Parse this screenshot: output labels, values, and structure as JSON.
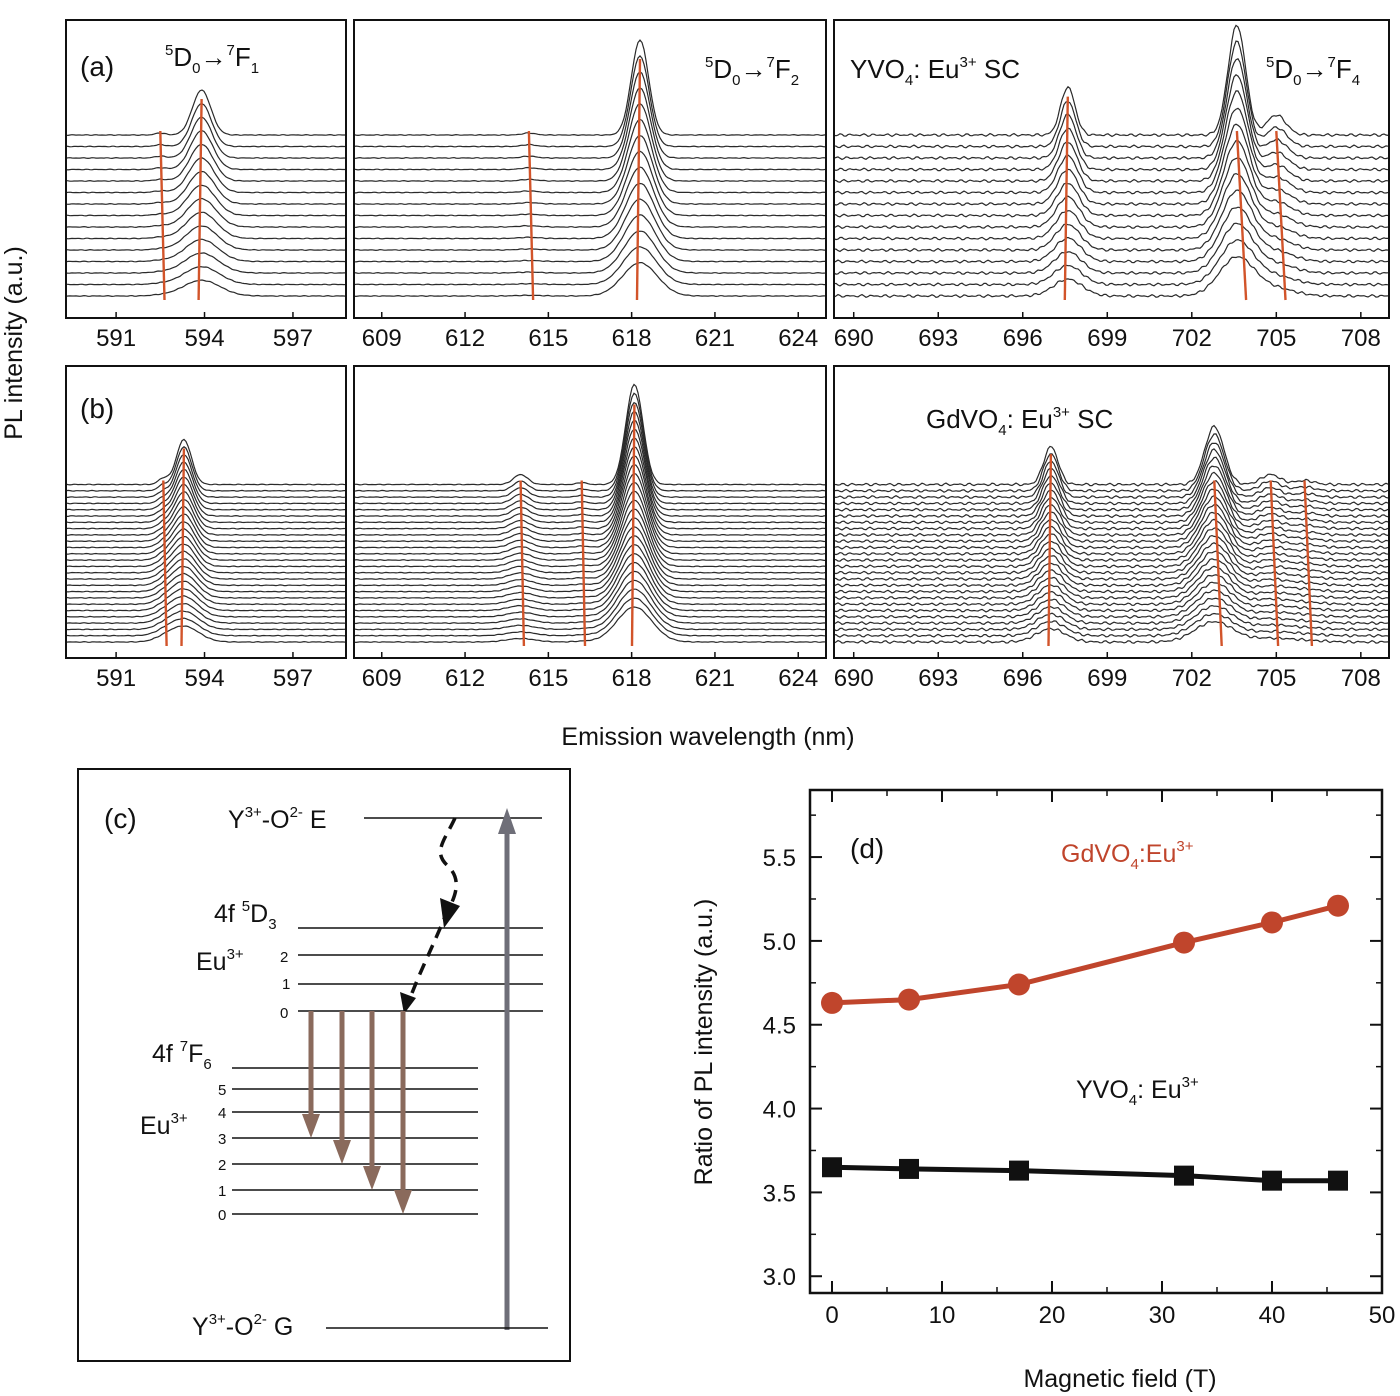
{
  "figure": {
    "shared_ylabel": "PL intensity (a.u.)",
    "shared_xlabel": "Emission wavelength (nm)",
    "panel_labels": {
      "a": "(a)",
      "b": "(b)",
      "c": "(c)",
      "d": "(d)"
    }
  },
  "spectra": {
    "row_a_material": "YVO4: Eu3+ SC",
    "row_b_material": "GdVO4: Eu3+ SC",
    "transitions": [
      "5D0→7F1",
      "5D0→7F2",
      "5D0→7F4"
    ],
    "windows": [
      {
        "ticks": [
          "591",
          "594",
          "597"
        ]
      },
      {
        "ticks": [
          "609",
          "612",
          "615",
          "618",
          "621",
          "624"
        ]
      },
      {
        "ticks": [
          "690",
          "693",
          "696",
          "699",
          "702",
          "705",
          "708"
        ]
      }
    ],
    "colors": {
      "trace": "#2a2a2a",
      "guide": "#d2542a"
    }
  },
  "energy_diagram": {
    "top_level": "Y3+-O2- E",
    "bottom_level": "Y3+-O2- G",
    "upper_multiplet": "4f 5D3",
    "lower_multiplet": "4f 7F6",
    "ion_label": "Eu3+",
    "upper_sublevels": [
      "2",
      "1",
      "0"
    ],
    "lower_sublevels": [
      "5",
      "4",
      "3",
      "2",
      "1",
      "0"
    ],
    "colors": {
      "emission_arrow": "#8a6a5c",
      "excitation_arrow": "#6e6e78",
      "relaxation": "#111111"
    }
  },
  "chart_data": [
    {
      "type": "line",
      "panel": "(d)",
      "xlabel": "Magnetic field (T)",
      "ylabel": "Ratio of PL intensity (a.u.)",
      "xlim": [
        -2,
        50
      ],
      "ylim": [
        2.9,
        5.9
      ],
      "xticks": [
        "0",
        "10",
        "20",
        "30",
        "40",
        "50"
      ],
      "yticks": [
        "3.0",
        "3.5",
        "4.0",
        "4.5",
        "5.0",
        "5.5"
      ],
      "series": [
        {
          "name": "GdVO4:Eu3+",
          "color": "#c0452c",
          "marker": "circle",
          "x": [
            0,
            7,
            17,
            32,
            40,
            46
          ],
          "y": [
            4.63,
            4.65,
            4.74,
            4.99,
            5.11,
            5.21
          ]
        },
        {
          "name": "YVO4: Eu3+",
          "color": "#111111",
          "marker": "square",
          "x": [
            0,
            7,
            17,
            32,
            40,
            46
          ],
          "y": [
            3.65,
            3.64,
            3.63,
            3.6,
            3.57,
            3.57
          ]
        }
      ],
      "legend": "inline labels"
    }
  ]
}
